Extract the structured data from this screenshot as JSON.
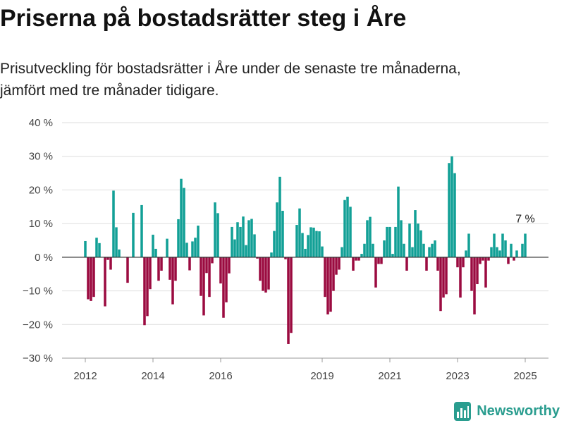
{
  "chart_data": {
    "type": "bar",
    "title": "Priserna på bostadsrätter steg i Åre",
    "subtitle": "Prisutveckling för bostadsrätter i Åre under de senaste tre månaderna, jämfört med tre månader tidigare.",
    "x": [
      "2012-01",
      "2012-02",
      "2012-03",
      "2012-04",
      "2012-05",
      "2012-06",
      "2012-07",
      "2012-08",
      "2012-09",
      "2012-10",
      "2012-11",
      "2012-12",
      "2013-01",
      "2013-02",
      "2013-03",
      "2013-04",
      "2013-05",
      "2013-06",
      "2013-07",
      "2013-08",
      "2013-09",
      "2013-10",
      "2013-11",
      "2013-12",
      "2014-01",
      "2014-02",
      "2014-03",
      "2014-04",
      "2014-05",
      "2014-06",
      "2014-07",
      "2014-08",
      "2014-09",
      "2014-10",
      "2014-11",
      "2014-12",
      "2015-01",
      "2015-02",
      "2015-03",
      "2015-04",
      "2015-05",
      "2015-06",
      "2015-07",
      "2015-08",
      "2015-09",
      "2015-10",
      "2015-11",
      "2015-12",
      "2016-01",
      "2016-02",
      "2016-03",
      "2016-04",
      "2016-05",
      "2016-06",
      "2016-07",
      "2016-08",
      "2016-09",
      "2016-10",
      "2016-11",
      "2016-12",
      "2017-01",
      "2017-02",
      "2017-03",
      "2017-04",
      "2017-05",
      "2017-06",
      "2017-07",
      "2017-08",
      "2017-09",
      "2017-10",
      "2017-11",
      "2017-12",
      "2018-01",
      "2018-02",
      "2018-03",
      "2018-04",
      "2018-05",
      "2018-06",
      "2018-07",
      "2018-08",
      "2018-09",
      "2018-10",
      "2018-11",
      "2018-12",
      "2019-01",
      "2019-02",
      "2019-03",
      "2019-04",
      "2019-05",
      "2019-06",
      "2019-07",
      "2019-08",
      "2019-09",
      "2019-10",
      "2019-11",
      "2019-12",
      "2020-01",
      "2020-02",
      "2020-03",
      "2020-04",
      "2020-05",
      "2020-06",
      "2020-07",
      "2020-08",
      "2020-09",
      "2020-10",
      "2020-11",
      "2020-12",
      "2021-01",
      "2021-02",
      "2021-03",
      "2021-04",
      "2021-05",
      "2021-06",
      "2021-07",
      "2021-08",
      "2021-09",
      "2021-10",
      "2021-11",
      "2021-12",
      "2022-01",
      "2022-02",
      "2022-03",
      "2022-04",
      "2022-05",
      "2022-06",
      "2022-07",
      "2022-08",
      "2022-09",
      "2022-10",
      "2022-11",
      "2022-12",
      "2023-01",
      "2023-02",
      "2023-03",
      "2023-04",
      "2023-05",
      "2023-06",
      "2023-07",
      "2023-08",
      "2023-09",
      "2023-10",
      "2023-11",
      "2023-12",
      "2024-01",
      "2024-02",
      "2024-03",
      "2024-04",
      "2024-05",
      "2024-06",
      "2024-07",
      "2024-08",
      "2024-09",
      "2024-10",
      "2024-11",
      "2024-12",
      "2025-01"
    ],
    "values": [
      4.8,
      -12.5,
      -13.0,
      -11.8,
      5.8,
      4.2,
      null,
      -14.6,
      -0.8,
      -3.7,
      19.8,
      8.9,
      2.3,
      null,
      null,
      -7.6,
      null,
      13.2,
      null,
      null,
      15.5,
      -20.2,
      -17.5,
      -9.5,
      6.7,
      2.5,
      -7.0,
      -4.0,
      null,
      5.5,
      -6.7,
      -14.0,
      -7.0,
      11.3,
      23.3,
      20.6,
      4.3,
      -3.9,
      4.7,
      5.8,
      9.4,
      -11.5,
      -17.3,
      -4.7,
      -11.8,
      -1.8,
      16.3,
      13.1,
      -7.8,
      -18.0,
      -13.4,
      -4.8,
      9.0,
      5.3,
      10.4,
      9.0,
      12.1,
      3.6,
      11.0,
      11.4,
      6.8,
      -0.4,
      -7.0,
      -10.0,
      -10.5,
      -9.6,
      1.4,
      7.8,
      16.3,
      23.9,
      13.8,
      -0.6,
      -25.8,
      -22.5,
      null,
      9.6,
      14.5,
      7.2,
      2.5,
      6.6,
      8.9,
      8.8,
      7.8,
      7.7,
      3.2,
      -11.8,
      -17.0,
      -16.2,
      -10.0,
      -5.2,
      -3.7,
      3.0,
      17.0,
      18.0,
      15.0,
      -4.0,
      -1.0,
      -1.0,
      1.0,
      4.0,
      11.0,
      12.0,
      4.0,
      -9.0,
      -2.0,
      -2.0,
      5.0,
      9.0,
      9.0,
      1.0,
      9.0,
      21.0,
      11.0,
      4.0,
      -4.0,
      10.0,
      3.0,
      14.0,
      10.0,
      8.0,
      4.0,
      -4.0,
      3.0,
      4.0,
      5.0,
      -4.0,
      -16.0,
      -12.0,
      -11.0,
      28.0,
      30.0,
      25.0,
      -3.0,
      -12.0,
      -3.0,
      2.0,
      7.0,
      -10.0,
      -17.0,
      -8.0,
      -2.0,
      -1.0,
      -9.0,
      -1.0,
      3.0,
      7.0,
      3.0,
      2.0,
      7.0,
      5.0,
      -2.0,
      4.0,
      -1.0,
      2.0,
      null,
      4.0,
      7.0
    ],
    "ylim": [
      -30,
      40
    ],
    "yticks": [
      40,
      30,
      20,
      10,
      0,
      -10,
      -20,
      -30
    ],
    "ytick_labels": [
      "40 %",
      "30 %",
      "20 %",
      "10 %",
      "0 %",
      "−10 %",
      "−20 %",
      "−30 %"
    ],
    "xtick_labels": [
      "2012",
      "2014",
      "2016",
      "2019",
      "2021",
      "2023",
      "2025"
    ],
    "grid": true,
    "colors": {
      "positive": "#12a096",
      "negative": "#9b0b40"
    },
    "annotations": [
      {
        "text": "7 %",
        "x": "2025-01"
      }
    ]
  },
  "logo": {
    "text": "Newsworthy",
    "icon": "bar-chart-logo-icon",
    "color": "#2a9d8f"
  }
}
